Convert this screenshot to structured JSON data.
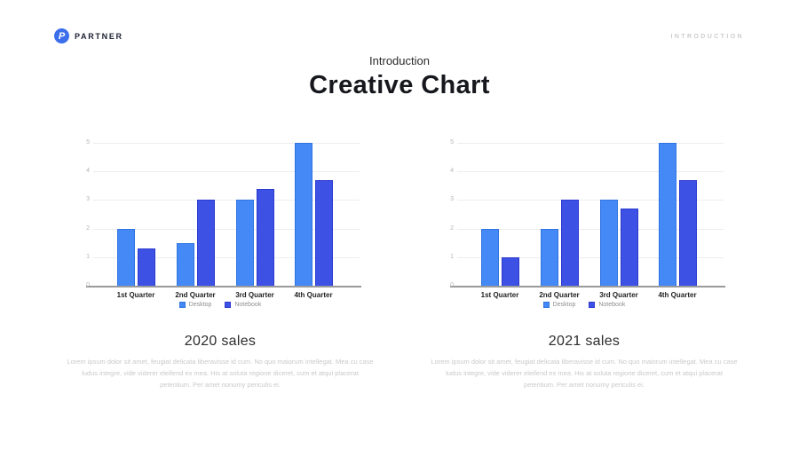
{
  "header": {
    "brand": "PARTNER",
    "brand_initial": "P",
    "page_label": "INTRODUCTION"
  },
  "title": {
    "eyebrow": "Introduction",
    "main": "Creative Chart"
  },
  "colors": {
    "logo": "#3B6FEB",
    "desktop": "#4489F6",
    "desktop_border": "#2F74E0",
    "notebook": "#3D51E5",
    "notebook_border": "#2B3BCE"
  },
  "chart_data": [
    {
      "type": "bar",
      "title": "2020 sales",
      "categories": [
        "1st Quarter",
        "2nd Quarter",
        "3rd Quarter",
        "4th Quarter"
      ],
      "series": [
        {
          "name": "Desktop",
          "color": "#4489F6",
          "border": "#2F74E0",
          "values": [
            2,
            1.5,
            3,
            5
          ]
        },
        {
          "name": "Notebook",
          "color": "#3D51E5",
          "border": "#2B3BCE",
          "values": [
            1.3,
            3,
            3.4,
            3.7
          ]
        }
      ],
      "ylim": [
        0,
        5
      ],
      "yticks": [
        0,
        1,
        2,
        3,
        4,
        5
      ],
      "grid": true,
      "legend_position": "bottom",
      "xlabel": "",
      "ylabel": ""
    },
    {
      "type": "bar",
      "title": "2021 sales",
      "categories": [
        "1st Quarter",
        "2nd Quarter",
        "3rd Quarter",
        "4th Quarter"
      ],
      "series": [
        {
          "name": "Desktop",
          "color": "#4489F6",
          "border": "#2F74E0",
          "values": [
            2,
            2,
            3,
            5
          ]
        },
        {
          "name": "Notebook",
          "color": "#3D51E5",
          "border": "#2B3BCE",
          "values": [
            1,
            3,
            2.7,
            3.7
          ]
        }
      ],
      "ylim": [
        0,
        5
      ],
      "yticks": [
        0,
        1,
        2,
        3,
        4,
        5
      ],
      "grid": true,
      "legend_position": "bottom",
      "xlabel": "",
      "ylabel": ""
    }
  ],
  "sections": [
    {
      "heading": "2020 sales",
      "body": "Lorem ipsum dolor sit amet, feugiat delicata liberavisse id cum. No quo maiorum intellegat. Mea cu case ludus integre, vide viderer eleifend ex mea. His at soluta regione diceret, cum et atqui placerat petentium. Per amet nonumy periculis ei."
    },
    {
      "heading": "2021 sales",
      "body": "Lorem ipsum dolor sit amet, feugiat delicata liberavisse id cum. No quo maiorum intellegat. Mea cu case ludus integre, vide viderer eleifend ex mea. His at soluta regione diceret, cum et atqui placerat petentium. Per amet nonumy periculis ei."
    }
  ]
}
